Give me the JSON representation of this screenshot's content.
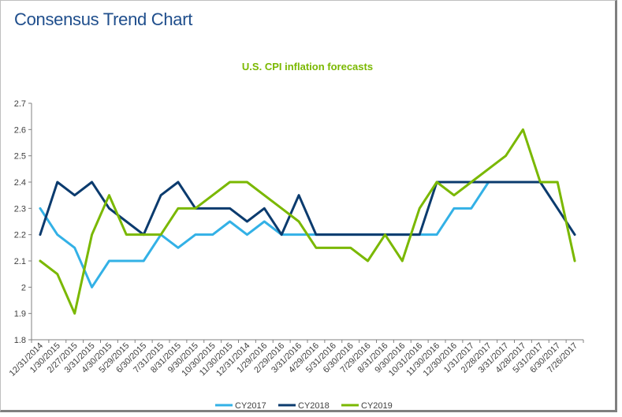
{
  "page_title": "Consensus Trend Chart",
  "colors": {
    "CY2017": "#33b1e6",
    "CY2018": "#0b3b6e",
    "CY2019": "#7ab800",
    "axis": "#808080"
  },
  "chart_data": {
    "type": "line",
    "title": "U.S. CPI inflation forecasts",
    "xlabel": "",
    "ylabel": "",
    "ylim": [
      1.8,
      2.7
    ],
    "yticks": [
      "1.8",
      "1.9",
      "2",
      "2.1",
      "2.2",
      "2.3",
      "2.4",
      "2.5",
      "2.6",
      "2.7"
    ],
    "grid": false,
    "legend": "bottom",
    "categories": [
      "12/31/2014",
      "1/30/2015",
      "2/27/2015",
      "3/31/2015",
      "4/30/2015",
      "5/29/2015",
      "6/30/2015",
      "7/31/2015",
      "8/31/2015",
      "9/30/2015",
      "10/30/2015",
      "11/30/2015",
      "12/31/2014",
      "1/29/2016",
      "2/29/2016",
      "3/31/2016",
      "4/29/2016",
      "5/31/2016",
      "6/30/2016",
      "7/29/2016",
      "8/31/2016",
      "9/30/2016",
      "10/31/2016",
      "11/30/2016",
      "12/30/2016",
      "1/31/2017",
      "2/28/2017",
      "3/31/2017",
      "4/28/2017",
      "5/31/2017",
      "6/30/2017",
      "7/26/2017"
    ],
    "series": [
      {
        "name": "CY2017",
        "values": [
          2.3,
          2.2,
          2.15,
          2.0,
          2.1,
          2.1,
          2.1,
          2.2,
          2.15,
          2.2,
          2.2,
          2.25,
          2.2,
          2.25,
          2.2,
          2.2,
          2.2,
          2.2,
          2.2,
          2.2,
          2.2,
          2.2,
          2.2,
          2.2,
          2.3,
          2.3,
          2.4,
          null,
          null,
          null,
          null,
          null
        ]
      },
      {
        "name": "CY2018",
        "values": [
          2.2,
          2.4,
          2.35,
          2.4,
          2.3,
          2.25,
          2.2,
          2.35,
          2.4,
          2.3,
          2.3,
          2.3,
          2.25,
          2.3,
          2.2,
          2.35,
          2.2,
          2.2,
          2.2,
          2.2,
          2.2,
          2.2,
          2.2,
          2.4,
          2.4,
          2.4,
          2.4,
          2.4,
          2.4,
          2.4,
          2.3,
          2.2
        ]
      },
      {
        "name": "CY2019",
        "values": [
          2.1,
          2.05,
          1.9,
          2.2,
          2.35,
          2.2,
          2.2,
          2.2,
          2.3,
          2.3,
          2.35,
          2.4,
          2.4,
          2.35,
          2.3,
          2.25,
          2.15,
          2.15,
          2.15,
          2.1,
          2.2,
          2.1,
          2.3,
          2.4,
          2.35,
          2.4,
          2.45,
          2.5,
          2.6,
          2.4,
          2.4,
          2.1
        ]
      }
    ]
  }
}
